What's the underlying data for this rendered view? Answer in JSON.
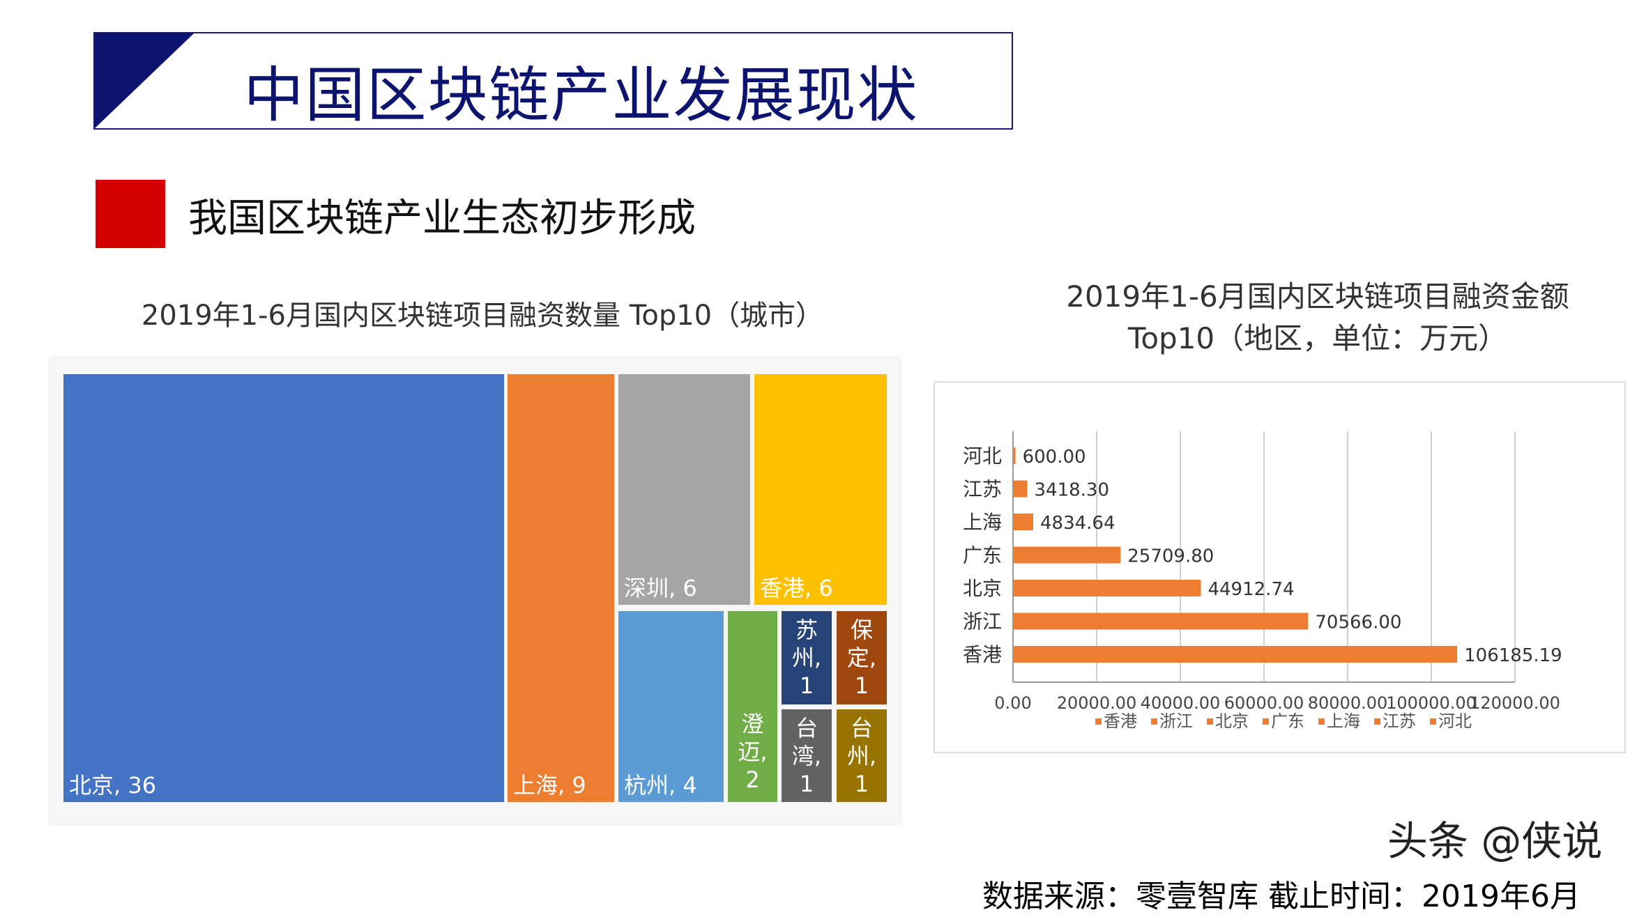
{
  "header": {
    "title": "中国区块链产业发展现状"
  },
  "section": {
    "subtitle": "我国区块链产业生态初步形成"
  },
  "footer": {
    "source": "数据来源：零壹智库   截止时间：2019年6月",
    "watermark": "头条 @侠说"
  },
  "chart_data": [
    {
      "type": "treemap",
      "title": "2019年1-6月国内区块链项目融资数量 Top10（城市）",
      "items": [
        {
          "name": "北京",
          "value": 36,
          "label": "北京, 36",
          "color": "#4472C4"
        },
        {
          "name": "上海",
          "value": 9,
          "label": "上海, 9",
          "color": "#ED7D31"
        },
        {
          "name": "深圳",
          "value": 6,
          "label": "深圳, 6",
          "color": "#A5A5A5"
        },
        {
          "name": "香港",
          "value": 6,
          "label": "香港, 6",
          "color": "#FFC000"
        },
        {
          "name": "杭州",
          "value": 4,
          "label": "杭州, 4",
          "color": "#5B9BD5"
        },
        {
          "name": "澄迈",
          "value": 2,
          "label": "澄迈, 2",
          "color": "#70AD47"
        },
        {
          "name": "苏州",
          "value": 1,
          "label": "苏州, 1",
          "color": "#264478"
        },
        {
          "name": "保定",
          "value": 1,
          "label": "保定, 1",
          "color": "#9E480E"
        },
        {
          "name": "台湾",
          "value": 1,
          "label": "台湾, 1",
          "color": "#636363"
        },
        {
          "name": "台州",
          "value": 1,
          "label": "台州, 1",
          "color": "#997300"
        }
      ]
    },
    {
      "type": "bar",
      "orientation": "horizontal",
      "title": "2019年1-6月国内区块链项目融资金额",
      "title2": "Top10（地区，单位：万元）",
      "categories": [
        "河北",
        "江苏",
        "上海",
        "广东",
        "北京",
        "浙江",
        "香港"
      ],
      "values": [
        600.0,
        3418.3,
        4834.64,
        25709.8,
        44912.74,
        70566.0,
        106185.19
      ],
      "labels": [
        "600.00",
        "3418.30",
        "4834.64",
        "25709.80",
        "44912.74",
        "70566.00",
        "106185.19"
      ],
      "xlim": [
        0,
        120000
      ],
      "xticks": [
        "0.00",
        "20000.00",
        "40000.00",
        "60000.00",
        "80000.00",
        "100000.00",
        "120000.00"
      ],
      "legend": [
        "香港",
        "浙江",
        "北京",
        "广东",
        "上海",
        "江苏",
        "河北"
      ],
      "legend_position": "bottom",
      "grid": true,
      "color": "#ED7D31"
    }
  ]
}
